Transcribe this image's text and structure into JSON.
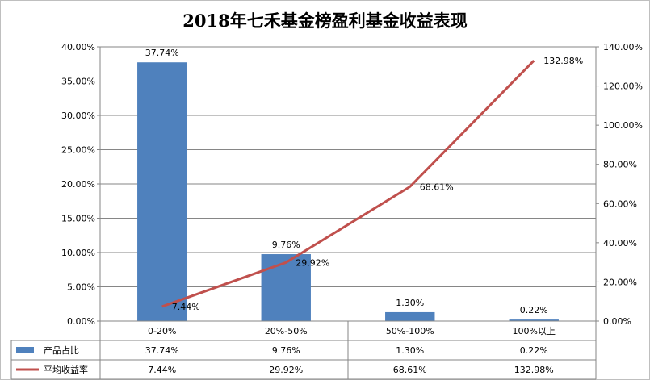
{
  "chart_data": {
    "type": "bar",
    "title": "2018年七禾基金榜盈利基金收益表现",
    "categories": [
      "0-20%",
      "20%-50%",
      "50%-100%",
      "100%以上"
    ],
    "series": [
      {
        "name": "产品占比",
        "type": "bar",
        "axis": "left",
        "color": "#4f81bd",
        "values": [
          37.74,
          9.76,
          1.3,
          0.22
        ],
        "labels": [
          "37.74%",
          "9.76%",
          "1.30%",
          "0.22%"
        ]
      },
      {
        "name": "平均收益率",
        "type": "line",
        "axis": "right",
        "color": "#c0504d",
        "values": [
          7.44,
          29.92,
          68.61,
          132.98
        ],
        "labels": [
          "7.44%",
          "29.92%",
          "68.61%",
          "132.98%"
        ]
      }
    ],
    "ylim_left": [
      0,
      40
    ],
    "ylim_right": [
      0,
      140
    ],
    "yticks_left": [
      "0.00%",
      "5.00%",
      "10.00%",
      "15.00%",
      "20.00%",
      "25.00%",
      "30.00%",
      "35.00%",
      "40.00%"
    ],
    "yticks_right": [
      "0.00%",
      "20.00%",
      "40.00%",
      "60.00%",
      "80.00%",
      "100.00%",
      "120.00%",
      "140.00%"
    ],
    "data_table": true,
    "grid": true
  }
}
